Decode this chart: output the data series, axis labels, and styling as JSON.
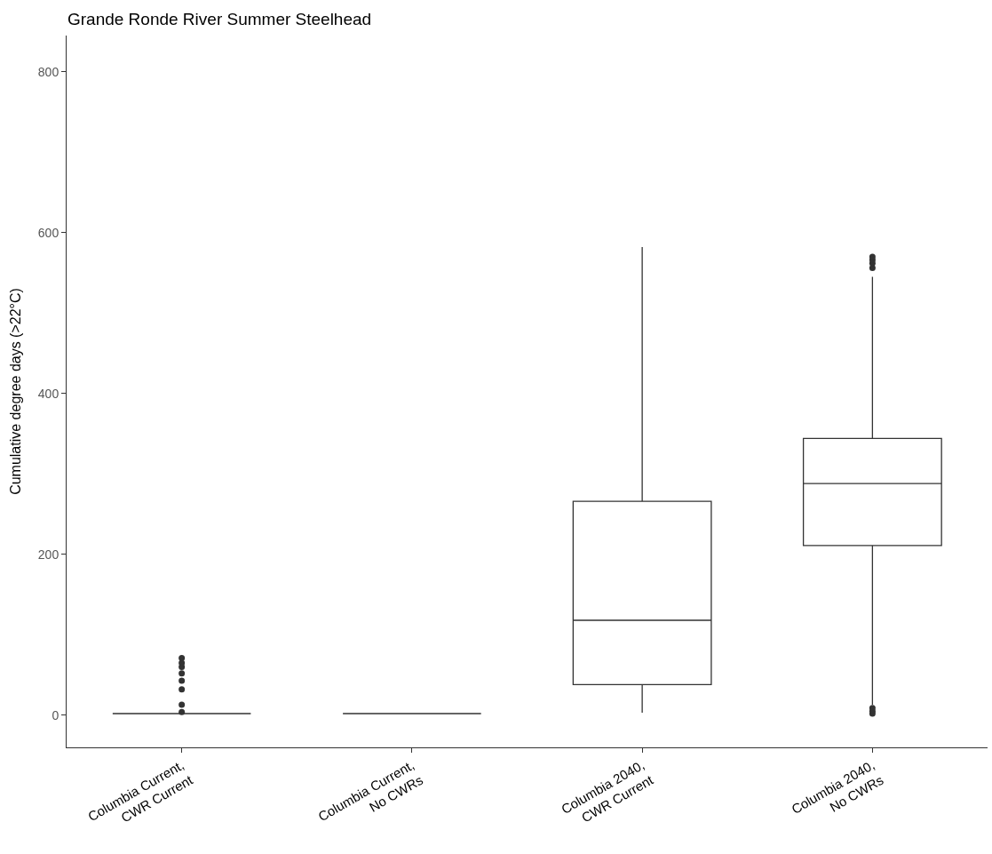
{
  "chart_data": {
    "type": "box",
    "title": "Grande Ronde River Summer Steelhead",
    "ylabel": "Cumulative degree days (>22°C)",
    "categories": [
      "Columbia Current,\nCWR Current",
      "Columbia Current,\nNo CWRs",
      "Columbia 2040,\nCWR Current",
      "Columbia 2040,\nNo CWRs"
    ],
    "boxes": [
      {
        "low": 2,
        "q1": 2,
        "median": 2,
        "q3": 2,
        "high": 2,
        "outliers": [
          4,
          13,
          32,
          43,
          52,
          60,
          65,
          71
        ]
      },
      {
        "low": 2,
        "q1": 2,
        "median": 2,
        "q3": 2,
        "high": 2
      },
      {
        "low": 3,
        "q1": 38,
        "median": 118,
        "q3": 266,
        "high": 582
      },
      {
        "low": 13,
        "q1": 211,
        "median": 288,
        "q3": 344,
        "high": 545,
        "outliers": [
          2,
          5,
          9,
          556,
          562,
          566,
          570
        ]
      }
    ],
    "color": "#333333",
    "marker": "circle",
    "ylim": [
      -40,
      845
    ],
    "yticks": [
      0,
      200,
      400,
      600,
      800
    ]
  }
}
